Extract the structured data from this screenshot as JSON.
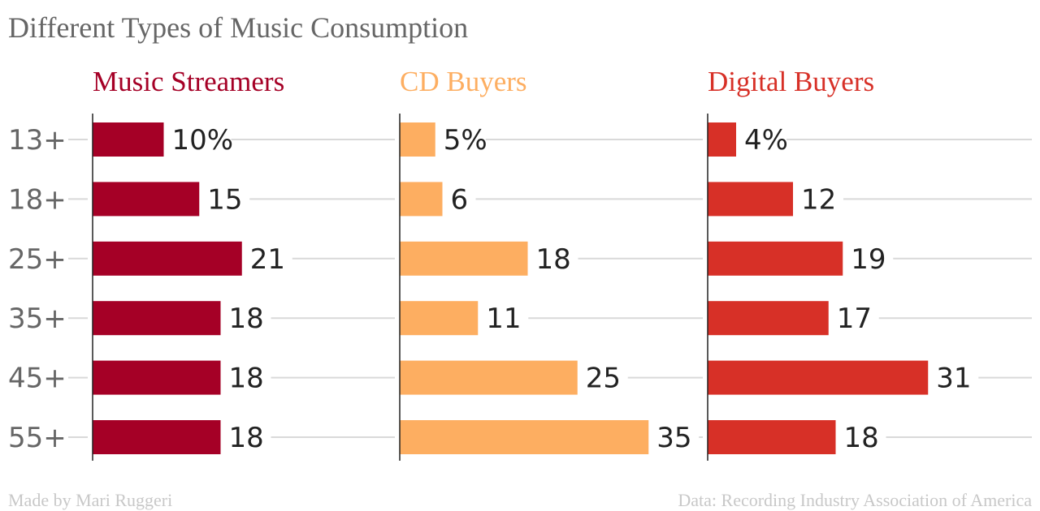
{
  "chart_data": {
    "type": "bar",
    "orientation": "horizontal",
    "title": "Different Types of Music Consumption",
    "categories": [
      "13+",
      "18+",
      "25+",
      "35+",
      "45+",
      "55+"
    ],
    "value_suffix_first_row": "%",
    "series": [
      {
        "name": "Music Streamers",
        "color": "#a50026",
        "values": [
          10,
          15,
          21,
          18,
          18,
          18
        ]
      },
      {
        "name": "CD Buyers",
        "color": "#fdae61",
        "values": [
          5,
          6,
          18,
          11,
          25,
          35
        ]
      },
      {
        "name": "Digital Buyers",
        "color": "#d73027",
        "values": [
          4,
          12,
          19,
          17,
          31,
          18
        ]
      }
    ],
    "xlim": [
      0,
      35
    ],
    "grid": true,
    "layout": "small-multiples"
  },
  "footer": {
    "credit": "Made by Mari Ruggeri",
    "source": "Data: Recording Industry Association of America"
  }
}
